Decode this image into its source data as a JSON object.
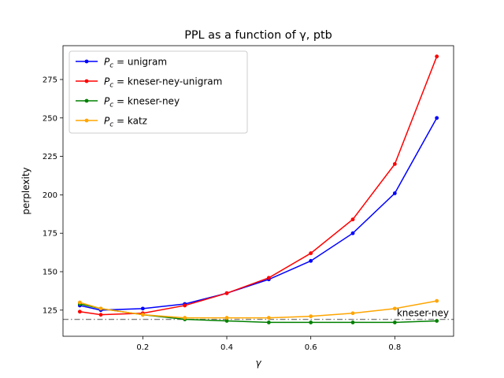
{
  "chart_data": {
    "type": "line",
    "title": "PPL as a function of γ, ptb",
    "xlabel": "γ",
    "ylabel": "perplexity",
    "xlim": [
      0.01,
      0.94
    ],
    "ylim": [
      108,
      297
    ],
    "xticks": [
      0.2,
      0.4,
      0.6,
      0.8
    ],
    "xtick_labels": [
      "0.2",
      "0.4",
      "0.6",
      "0.8"
    ],
    "yticks": [
      125,
      150,
      175,
      200,
      225,
      250,
      275
    ],
    "ytick_labels": [
      "125",
      "150",
      "175",
      "200",
      "225",
      "250",
      "275"
    ],
    "grid": false,
    "legend_position": "top-left",
    "x": [
      0.05,
      0.1,
      0.2,
      0.3,
      0.4,
      0.5,
      0.6,
      0.7,
      0.8,
      0.9
    ],
    "series": [
      {
        "name": "P_c = unigram",
        "legend_prefix": "P",
        "legend_sub": "c",
        "legend_rest": " = unigram",
        "color": "#0000ff",
        "values": [
          128,
          125,
          126,
          129,
          136,
          145,
          157,
          175,
          201,
          250
        ]
      },
      {
        "name": "P_c = kneser-ney-unigram",
        "legend_prefix": "P",
        "legend_sub": "c",
        "legend_rest": " = kneser-ney-unigram",
        "color": "#ff0000",
        "values": [
          124,
          122,
          123,
          128,
          136,
          146,
          162,
          184,
          220,
          290
        ]
      },
      {
        "name": "P_c = kneser-ney",
        "legend_prefix": "P",
        "legend_sub": "c",
        "legend_rest": " = kneser-ney",
        "color": "#008000",
        "values": [
          129,
          126,
          122,
          119,
          118,
          117,
          117,
          117,
          117,
          118
        ]
      },
      {
        "name": "P_c = katz",
        "legend_prefix": "P",
        "legend_sub": "c",
        "legend_rest": " = katz",
        "color": "#ffa500",
        "values": [
          130,
          126,
          122,
          120,
          120,
          120,
          121,
          123,
          126,
          131
        ]
      }
    ],
    "reference_line": {
      "label": "kneser-ney",
      "value": 119,
      "color": "#808080"
    }
  }
}
